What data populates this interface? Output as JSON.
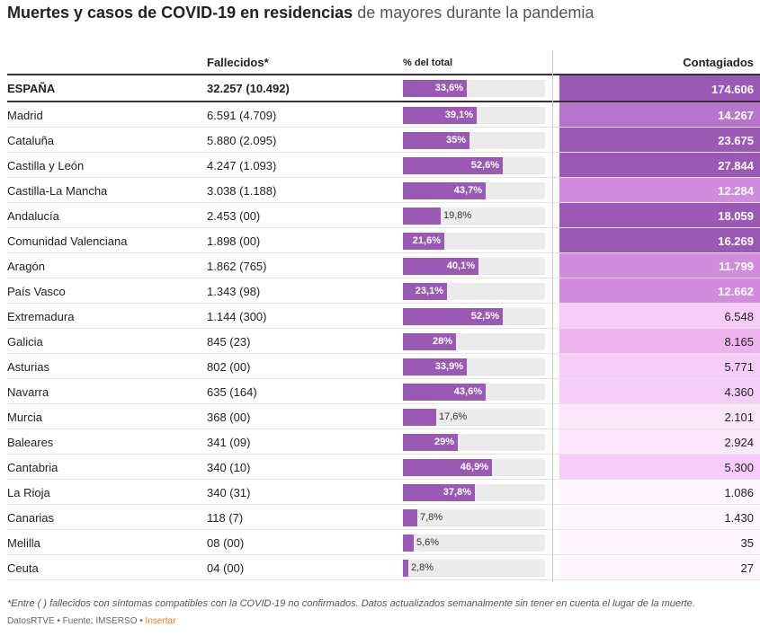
{
  "title": {
    "bold": "Muertes y casos de COVID-19 en residencias",
    "light": "de mayores durante la pandemia"
  },
  "headers": {
    "fallecidos": "Fallecidos*",
    "pct": "% del total",
    "contagiados": "Contagiados"
  },
  "chart_data": {
    "type": "table",
    "columns": [
      "",
      "Fallecidos*",
      "% del total",
      "Contagiados"
    ],
    "rows": [
      {
        "name": "ESPAÑA",
        "fallecidos": "32.257 (10.492)",
        "pct": 33.6,
        "pct_label": "33,6%",
        "contagiados": "174.606",
        "cont_value": 174606,
        "total": true
      },
      {
        "name": "Madrid",
        "fallecidos": "6.591 (4.709)",
        "pct": 39.1,
        "pct_label": "39,1%",
        "contagiados": "14.267",
        "cont_value": 14267
      },
      {
        "name": "Cataluña",
        "fallecidos": "5.880 (2.095)",
        "pct": 35,
        "pct_label": "35%",
        "contagiados": "23.675",
        "cont_value": 23675
      },
      {
        "name": "Castilla y León",
        "fallecidos": "4.247 (1.093)",
        "pct": 52.6,
        "pct_label": "52,6%",
        "contagiados": "27.844",
        "cont_value": 27844
      },
      {
        "name": "Castilla-La Mancha",
        "fallecidos": "3.038 (1.188)",
        "pct": 43.7,
        "pct_label": "43,7%",
        "contagiados": "12.284",
        "cont_value": 12284
      },
      {
        "name": "Andalucía",
        "fallecidos": "2.453 (00)",
        "pct": 19.8,
        "pct_label": "19,8%",
        "contagiados": "18.059",
        "cont_value": 18059
      },
      {
        "name": "Comunidad Valenciana",
        "fallecidos": "1.898 (00)",
        "pct": 21.6,
        "pct_label": "21,6%",
        "contagiados": "16.269",
        "cont_value": 16269
      },
      {
        "name": "Aragón",
        "fallecidos": "1.862 (765)",
        "pct": 40.1,
        "pct_label": "40,1%",
        "contagiados": "11.799",
        "cont_value": 11799
      },
      {
        "name": "País Vasco",
        "fallecidos": "1.343 (98)",
        "pct": 23.1,
        "pct_label": "23,1%",
        "contagiados": "12.662",
        "cont_value": 12662
      },
      {
        "name": "Extremadura",
        "fallecidos": "1.144 (300)",
        "pct": 52.5,
        "pct_label": "52,5%",
        "contagiados": "6.548",
        "cont_value": 6548
      },
      {
        "name": "Galicia",
        "fallecidos": "845 (23)",
        "pct": 28,
        "pct_label": "28%",
        "contagiados": "8.165",
        "cont_value": 8165
      },
      {
        "name": "Asturias",
        "fallecidos": "802 (00)",
        "pct": 33.9,
        "pct_label": "33,9%",
        "contagiados": "5.771",
        "cont_value": 5771
      },
      {
        "name": "Navarra",
        "fallecidos": "635 (164)",
        "pct": 43.6,
        "pct_label": "43,6%",
        "contagiados": "4.360",
        "cont_value": 4360
      },
      {
        "name": "Murcia",
        "fallecidos": "368 (00)",
        "pct": 17.6,
        "pct_label": "17,6%",
        "contagiados": "2.101",
        "cont_value": 2101
      },
      {
        "name": "Baleares",
        "fallecidos": "341 (09)",
        "pct": 29,
        "pct_label": "29%",
        "contagiados": "2.924",
        "cont_value": 2924
      },
      {
        "name": "Cantabria",
        "fallecidos": "340 (10)",
        "pct": 46.9,
        "pct_label": "46,9%",
        "contagiados": "5.300",
        "cont_value": 5300
      },
      {
        "name": "La Rioja",
        "fallecidos": "340 (31)",
        "pct": 37.8,
        "pct_label": "37,8%",
        "contagiados": "1.086",
        "cont_value": 1086
      },
      {
        "name": "Canarias",
        "fallecidos": "118 (7)",
        "pct": 7.8,
        "pct_label": "7,8%",
        "contagiados": "1.430",
        "cont_value": 1430
      },
      {
        "name": "Melilla",
        "fallecidos": "08 (00)",
        "pct": 5.6,
        "pct_label": "5,6%",
        "contagiados": "35",
        "cont_value": 35
      },
      {
        "name": "Ceuta",
        "fallecidos": "04 (00)",
        "pct": 2.8,
        "pct_label": "2,8%",
        "contagiados": "27",
        "cont_value": 27
      }
    ],
    "pct_range": [
      0,
      75
    ],
    "bar_color": "#9b59b6",
    "heat_colors": [
      "#fdf6fd",
      "#fbe5fb",
      "#f8ccf8",
      "#eeb3ee",
      "#d18cde",
      "#b674cc",
      "#9b59b6"
    ],
    "heat_thresholds": [
      1500,
      4000,
      7000,
      10000,
      13000,
      15000
    ]
  },
  "footnote": "*Entre ( ) fallecidos con síntomas compatibles con la COVID-19 no confirmados. Datos actualizados semanalmente sin tener en cuenta el lugar de la muerte.",
  "credits": {
    "text": "DatosRTVE • Fuente: IMSERSO •",
    "insert": "Insertar"
  }
}
